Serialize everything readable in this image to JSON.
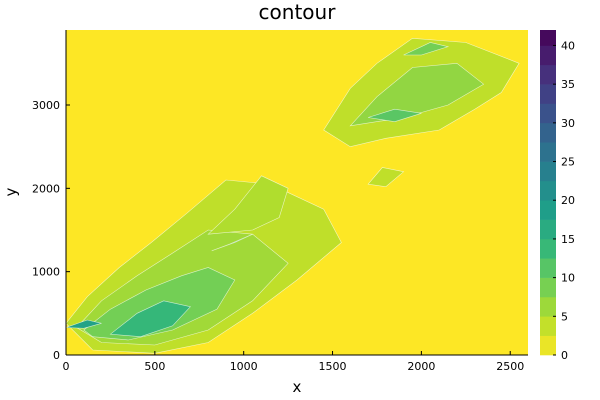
{
  "chart_data": {
    "type": "heatmap",
    "title": "contour",
    "xlabel": "x",
    "ylabel": "y",
    "xlim": [
      0,
      2600
    ],
    "ylim": [
      0,
      3900
    ],
    "x_ticks": [
      "0",
      "500",
      "1000",
      "1500",
      "2000",
      "2500"
    ],
    "x_tick_values": [
      0,
      500,
      1000,
      1500,
      2000,
      2500
    ],
    "y_ticks": [
      "0",
      "1000",
      "2000",
      "3000"
    ],
    "y_tick_values": [
      0,
      1000,
      2000,
      3000
    ],
    "colorbar": {
      "ticks": [
        "0",
        "5",
        "10",
        "15",
        "20",
        "25",
        "30",
        "35",
        "40"
      ],
      "tick_values": [
        0,
        5,
        10,
        15,
        20,
        25,
        30,
        35,
        40
      ],
      "range": [
        0,
        42
      ],
      "colormap": "viridis-reversed",
      "levels": [
        0,
        2.5,
        5,
        7.5,
        10,
        12.5,
        15,
        17.5,
        20,
        22.5,
        25,
        27.5,
        30,
        32.5,
        35,
        37.5,
        40,
        42
      ]
    },
    "grid": false,
    "legend": "right-colorbar",
    "regions": [
      {
        "level": 4,
        "polygon": [
          [
            0,
            380
          ],
          [
            120,
            700
          ],
          [
            300,
            1050
          ],
          [
            480,
            1350
          ],
          [
            680,
            1700
          ],
          [
            900,
            2100
          ],
          [
            1150,
            2050
          ],
          [
            1450,
            1750
          ],
          [
            1550,
            1350
          ],
          [
            1300,
            900
          ],
          [
            1050,
            500
          ],
          [
            800,
            150
          ],
          [
            500,
            20
          ],
          [
            150,
            60
          ]
        ]
      },
      {
        "level": 6,
        "polygon": [
          [
            60,
            330
          ],
          [
            200,
            650
          ],
          [
            400,
            950
          ],
          [
            620,
            1250
          ],
          [
            800,
            1500
          ],
          [
            1050,
            1450
          ],
          [
            1250,
            1100
          ],
          [
            1050,
            650
          ],
          [
            800,
            300
          ],
          [
            500,
            120
          ],
          [
            200,
            150
          ]
        ]
      },
      {
        "level": 9,
        "polygon": [
          [
            100,
            300
          ],
          [
            250,
            550
          ],
          [
            450,
            780
          ],
          [
            650,
            950
          ],
          [
            800,
            1050
          ],
          [
            950,
            900
          ],
          [
            850,
            550
          ],
          [
            600,
            300
          ],
          [
            350,
            180
          ],
          [
            150,
            220
          ]
        ]
      },
      {
        "level": 14,
        "polygon": [
          [
            250,
            250
          ],
          [
            400,
            500
          ],
          [
            550,
            650
          ],
          [
            700,
            580
          ],
          [
            600,
            350
          ],
          [
            420,
            220
          ]
        ]
      },
      {
        "level": 18,
        "polygon": [
          [
            0,
            330
          ],
          [
            120,
            420
          ],
          [
            200,
            380
          ],
          [
            100,
            320
          ]
        ]
      },
      {
        "level": 20,
        "polygon": [
          [
            820,
            1250
          ],
          [
            950,
            1350
          ],
          [
            1050,
            1450
          ],
          [
            920,
            1330
          ]
        ]
      },
      {
        "level": 5,
        "polygon": [
          [
            800,
            1450
          ],
          [
            950,
            1750
          ],
          [
            1100,
            2150
          ],
          [
            1250,
            2000
          ],
          [
            1200,
            1650
          ],
          [
            1050,
            1500
          ]
        ]
      },
      {
        "level": 4,
        "polygon": [
          [
            1450,
            2700
          ],
          [
            1600,
            3200
          ],
          [
            1750,
            3500
          ],
          [
            1950,
            3800
          ],
          [
            2250,
            3750
          ],
          [
            2550,
            3500
          ],
          [
            2450,
            3150
          ],
          [
            2300,
            2950
          ],
          [
            2100,
            2700
          ],
          [
            1800,
            2600
          ],
          [
            1600,
            2500
          ]
        ]
      },
      {
        "level": 7,
        "polygon": [
          [
            1600,
            2750
          ],
          [
            1750,
            3100
          ],
          [
            1950,
            3450
          ],
          [
            2200,
            3500
          ],
          [
            2350,
            3250
          ],
          [
            2150,
            3000
          ],
          [
            1900,
            2850
          ]
        ]
      },
      {
        "level": 11,
        "polygon": [
          [
            1700,
            2850
          ],
          [
            1850,
            2950
          ],
          [
            2000,
            2900
          ],
          [
            1850,
            2800
          ]
        ]
      },
      {
        "level": 9,
        "polygon": [
          [
            1900,
            3600
          ],
          [
            2050,
            3750
          ],
          [
            2150,
            3700
          ],
          [
            2000,
            3600
          ]
        ]
      },
      {
        "level": 4,
        "polygon": [
          [
            1700,
            2050
          ],
          [
            1780,
            2250
          ],
          [
            1900,
            2200
          ],
          [
            1800,
            2020
          ]
        ]
      }
    ]
  }
}
